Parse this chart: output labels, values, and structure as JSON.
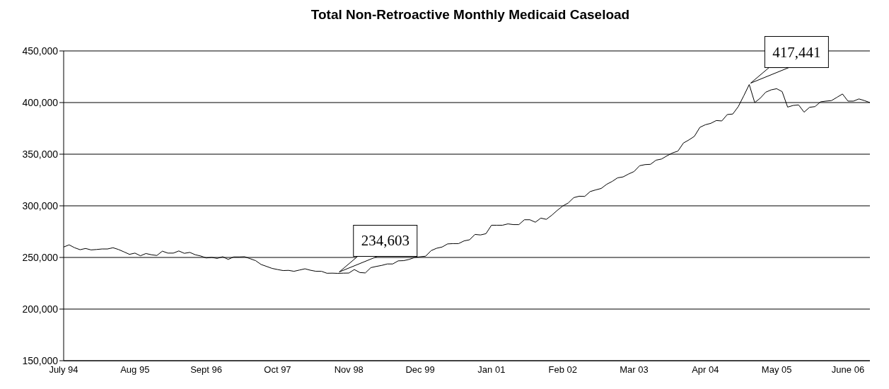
{
  "chart_data": {
    "type": "line",
    "title": "Total Non-Retroactive Monthly Medicaid Caseload",
    "categories": [
      "July 94",
      null,
      null,
      null,
      null,
      null,
      null,
      null,
      null,
      null,
      null,
      null,
      null,
      "Aug 95",
      null,
      null,
      null,
      null,
      null,
      null,
      null,
      null,
      null,
      null,
      null,
      null,
      "Sept 96",
      null,
      null,
      null,
      null,
      null,
      null,
      null,
      null,
      null,
      null,
      null,
      null,
      "Oct  97",
      null,
      null,
      null,
      null,
      null,
      null,
      null,
      null,
      null,
      null,
      null,
      null,
      "Nov 98",
      null,
      null,
      null,
      null,
      null,
      null,
      null,
      null,
      null,
      null,
      null,
      null,
      "Dec 99",
      null,
      null,
      null,
      null,
      null,
      null,
      null,
      null,
      null,
      null,
      null,
      null,
      "Jan 01",
      null,
      null,
      null,
      null,
      null,
      null,
      null,
      null,
      null,
      null,
      null,
      null,
      "Feb 02",
      null,
      null,
      null,
      null,
      null,
      null,
      null,
      null,
      null,
      null,
      null,
      null,
      "Mar 03",
      null,
      null,
      null,
      null,
      null,
      null,
      null,
      null,
      null,
      null,
      null,
      null,
      "Apr 04",
      null,
      null,
      null,
      null,
      null,
      null,
      null,
      null,
      null,
      null,
      null,
      null,
      "May 05",
      null,
      null,
      null,
      null,
      null,
      null,
      null,
      null,
      null,
      null,
      null,
      null,
      "June 06",
      null,
      null,
      null,
      null
    ],
    "series": [
      {
        "color": "#000000",
        "values": [
          260100,
          262200,
          259400,
          257500,
          258700,
          257300,
          257700,
          258200,
          258200,
          259400,
          257700,
          255400,
          253000,
          254200,
          251600,
          253800,
          252600,
          251900,
          256100,
          254200,
          254200,
          256300,
          254000,
          254900,
          252600,
          251400,
          249500,
          250000,
          249100,
          250700,
          248100,
          250500,
          250500,
          250700,
          248800,
          246900,
          243200,
          241300,
          239400,
          238300,
          237300,
          237500,
          236600,
          237800,
          239000,
          237600,
          236600,
          236600,
          234700,
          234800,
          234603,
          234800,
          234900,
          238300,
          235400,
          235000,
          240100,
          241300,
          242300,
          243700,
          243700,
          246700,
          246900,
          248100,
          250000,
          250700,
          251200,
          256600,
          258900,
          260100,
          263100,
          263400,
          263400,
          266000,
          267100,
          272300,
          271800,
          273000,
          281200,
          281200,
          281200,
          282500,
          281800,
          281800,
          286500,
          286500,
          284100,
          288100,
          286900,
          290900,
          295600,
          299800,
          302800,
          307900,
          309300,
          309100,
          313800,
          315400,
          316800,
          320800,
          323600,
          327100,
          328000,
          330800,
          333200,
          338800,
          339900,
          340200,
          344200,
          345300,
          348400,
          351200,
          353000,
          360800,
          363800,
          367300,
          376000,
          378500,
          379900,
          382600,
          382200,
          388400,
          388900,
          396100,
          406500,
          417441,
          400000,
          404200,
          410000,
          412300,
          413400,
          410600,
          395600,
          397200,
          397700,
          390700,
          395400,
          396100,
          400700,
          401400,
          401900,
          405100,
          408300,
          401400,
          401400,
          403500,
          401900,
          400000
        ],
        "value_labels": [
          null,
          null,
          null,
          null,
          null,
          null,
          null,
          null,
          null,
          null,
          null,
          null,
          null,
          null,
          null,
          null,
          null,
          null,
          null,
          null,
          null,
          null,
          null,
          null,
          null,
          null,
          null,
          null,
          null,
          null,
          null,
          null,
          null,
          null,
          null,
          null,
          null,
          null,
          null,
          null,
          null,
          null,
          null,
          null,
          null,
          null,
          null,
          null,
          null,
          null,
          "234,603",
          null,
          null,
          null,
          null,
          null,
          null,
          null,
          null,
          null,
          null,
          null,
          null,
          null,
          null,
          null,
          null,
          null,
          null,
          null,
          null,
          null,
          null,
          null,
          null,
          null,
          null,
          null,
          null,
          null,
          null,
          null,
          null,
          null,
          null,
          null,
          null,
          null,
          null,
          null,
          null,
          null,
          null,
          null,
          null,
          null,
          null,
          null,
          null,
          null,
          null,
          null,
          null,
          null,
          null,
          null,
          null,
          null,
          null,
          null,
          null,
          null,
          null,
          null,
          null,
          null,
          null,
          null,
          null,
          null,
          null,
          null,
          null,
          null,
          null,
          "417,441",
          null,
          null,
          null,
          null,
          null,
          null,
          null,
          null,
          null,
          null,
          null,
          null,
          null,
          null,
          null,
          null,
          null,
          null,
          null,
          null,
          null,
          null
        ]
      }
    ],
    "ylim": [
      150000,
      450000
    ],
    "yticks": [
      {
        "value": 150000,
        "label": "150,000"
      },
      {
        "value": 200000,
        "label": "200,000"
      },
      {
        "value": 250000,
        "label": "250,000"
      },
      {
        "value": 300000,
        "label": "300,000"
      },
      {
        "value": 350000,
        "label": "350,000"
      },
      {
        "value": 400000,
        "label": "400,000"
      },
      {
        "value": 450000,
        "label": "450,000"
      }
    ],
    "grid": "y",
    "marker": "none",
    "line_style": "solid"
  }
}
